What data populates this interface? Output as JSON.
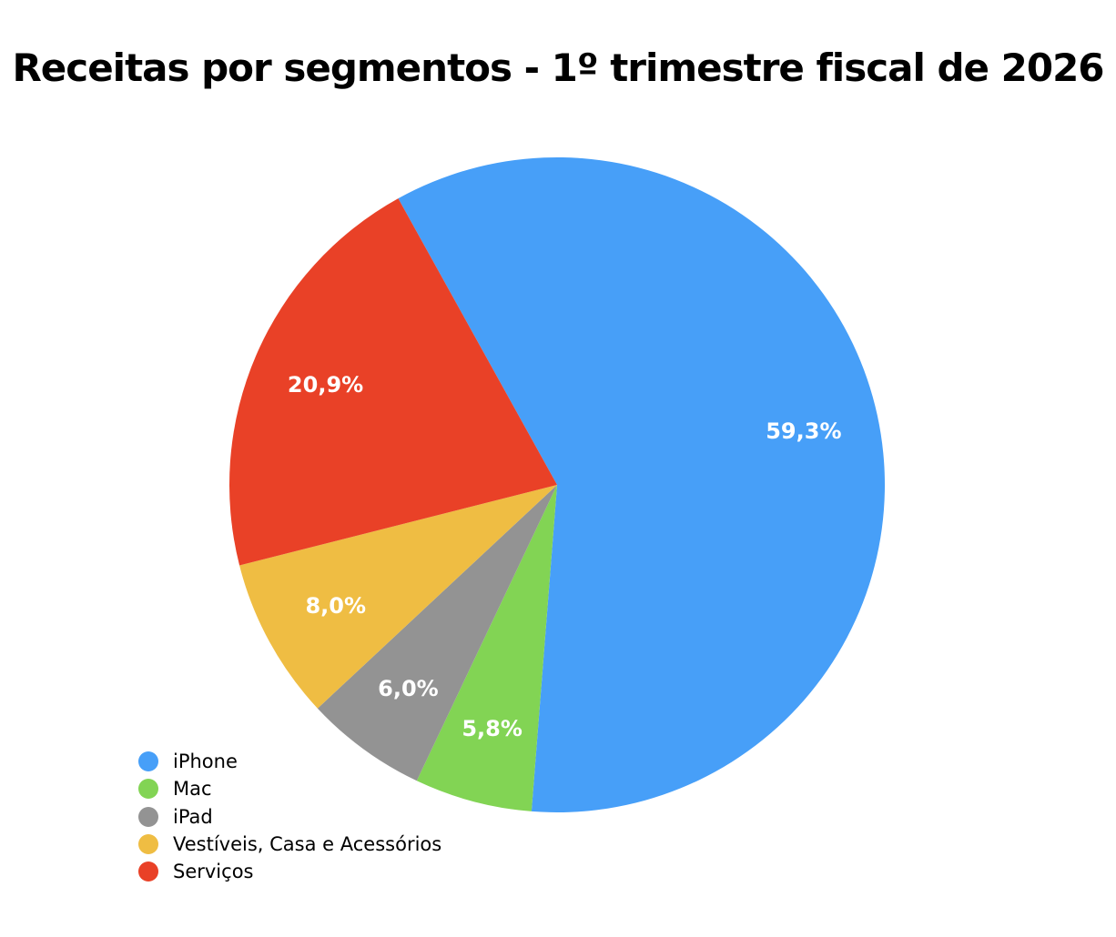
{
  "chart_data": {
    "type": "pie",
    "title": "Receitas por segmentos - 1º trimestre fiscal de 2026",
    "legend_position": "bottom-left",
    "slices": [
      {
        "name": "iPhone",
        "value": 59.3,
        "label": "59,3%",
        "color": "#479FF8"
      },
      {
        "name": "Mac",
        "value": 5.8,
        "label": "5,8%",
        "color": "#82D454"
      },
      {
        "name": "iPad",
        "value": 6.0,
        "label": "6,0%",
        "color": "#939393"
      },
      {
        "name": "Vestíveis, Casa e Acessórios",
        "value": 8.0,
        "label": "8,0%",
        "color": "#EFBD43"
      },
      {
        "name": "Serviços",
        "value": 20.9,
        "label": "20,9%",
        "color": "#E94127"
      }
    ]
  }
}
